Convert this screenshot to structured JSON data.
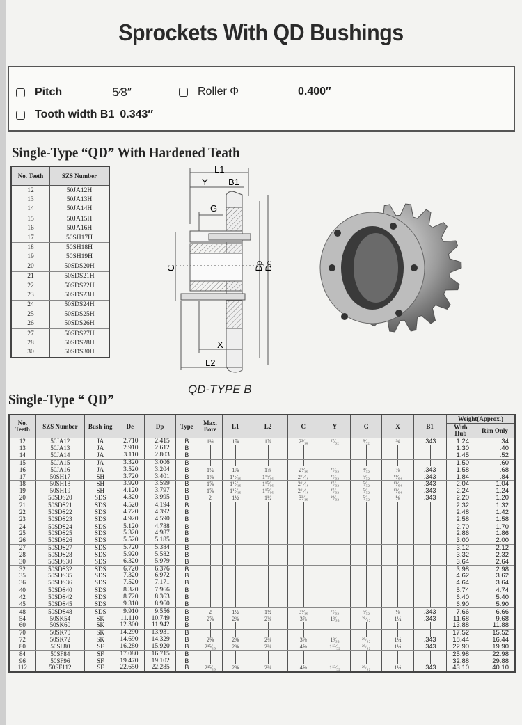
{
  "title": "Sprockets With QD Bushings",
  "specs": {
    "pitch_label": "Pitch",
    "pitch_value": "5⁄8″",
    "roller_label": "Roller Φ",
    "roller_value": "0.400″",
    "tooth_label": "Tooth width B1",
    "tooth_value": "0.343″"
  },
  "hardened": {
    "heading": "Single-Type “QD” With Hardened Teath",
    "headers": [
      "No. Teeth",
      "SZS Number"
    ],
    "rows": [
      [
        "12",
        "50JA12H"
      ],
      [
        "13",
        "50JA13H"
      ],
      [
        "14",
        "50JA14H"
      ],
      [
        "15",
        "50JA15H"
      ],
      [
        "16",
        "50JA16H"
      ],
      [
        "17",
        "50SH17H"
      ],
      [
        "18",
        "50SH18H"
      ],
      [
        "19",
        "50SH19H"
      ],
      [
        "20",
        "50SDS20H"
      ],
      [
        "21",
        "50SDS21H"
      ],
      [
        "22",
        "50SDS22H"
      ],
      [
        "23",
        "50SDS23H"
      ],
      [
        "24",
        "50SDS24H"
      ],
      [
        "25",
        "50SDS25H"
      ],
      [
        "26",
        "50SDS26H"
      ],
      [
        "27",
        "50SDS27H"
      ],
      [
        "28",
        "50SDS28H"
      ],
      [
        "30",
        "50SDS30H"
      ]
    ]
  },
  "diagram": {
    "labels": {
      "L1": "L1",
      "Y": "Y",
      "B1": "B1",
      "G": "G",
      "C": "C",
      "Dp": "Dp",
      "De": "De",
      "X": "X",
      "L2": "L2"
    },
    "caption": "QD-TYPE B"
  },
  "main": {
    "heading": "Single-Type “ QD”",
    "headers": [
      "No. Teeth",
      "SZS Number",
      "Bush-ing",
      "De",
      "Dp",
      "Type",
      "Max. Bore",
      "L1",
      "L2",
      "C",
      "Y",
      "G",
      "X",
      "B1"
    ],
    "weight_header": "Weight(Approx.)",
    "weight_sub": [
      "With Hub",
      "Rim Only"
    ],
    "rows": [
      [
        "12",
        "50JA12",
        "JA",
        "2.710",
        "2.415",
        "B",
        "1¼",
        "1⅞",
        "1⅞",
        "2³⁄₁₆",
        "²⁷⁄₃₂",
        "⁹⁄₃₂",
        "⅜",
        ".343",
        "1.24",
        ".34"
      ],
      [
        "13",
        "50JA13",
        "JA",
        "2.910",
        "2.612",
        "B",
        "",
        "",
        "",
        "",
        "",
        "",
        "",
        "",
        "1.30",
        ".40"
      ],
      [
        "14",
        "50JA14",
        "JA",
        "3.110",
        "2.803",
        "B",
        "",
        "",
        "",
        "",
        "",
        "",
        "",
        "",
        "1.45",
        ".52"
      ],
      [
        "15",
        "50JA15",
        "JA",
        "3.320",
        "3.006",
        "B",
        "",
        "",
        "",
        "",
        "",
        "",
        "",
        "",
        "1.50",
        ".60"
      ],
      [
        "16",
        "50JA16",
        "JA",
        "3.520",
        "3.204",
        "B",
        "1¼",
        "1⅞",
        "1⅞",
        "2³⁄₁₆",
        "²⁷⁄₃₂",
        "⁹⁄₃₂",
        "⅜",
        ".343",
        "1.58",
        ".68"
      ],
      [
        "17",
        "50SH17",
        "SH",
        "3.720",
        "3.401",
        "B",
        "1⅜",
        "1¹⁵⁄₁₆",
        "1¹⁵⁄₁₆",
        "2¹¹⁄₁₆",
        "²⁷⁄₃₂",
        "⁵⁄₃₂",
        "¹³⁄₆₄",
        ".343",
        "1.84",
        ".84"
      ],
      [
        "18",
        "50SH18",
        "SH",
        "3.920",
        "3.599",
        "B",
        "1⅝",
        "1¹⁵⁄₁₆",
        "1¹⁵⁄₁₆",
        "2¹¹⁄₁₆",
        "²⁷⁄₃₂",
        "⁵⁄₃₂",
        "¹³⁄₆₄",
        ".343",
        "2.04",
        "1.04"
      ],
      [
        "19",
        "50SH19",
        "SH",
        "4.120",
        "3.797",
        "B",
        "1⅝",
        "1¹⁵⁄₁₆",
        "1¹⁵⁄₁₆",
        "2¹¹⁄₁₆",
        "²⁷⁄₃₂",
        "⁵⁄₃₂",
        "¹³⁄₆₄",
        ".343",
        "2.24",
        "1.24"
      ],
      [
        "20",
        "50SDS20",
        "SDS",
        "4.320",
        "3.995",
        "B",
        "2",
        "1½",
        "1½",
        "3³⁄₁₆",
        "¹⁹⁄₃₂",
        "⁵⁄₃₂",
        "⅛",
        ".343",
        "2.20",
        "1.20"
      ],
      [
        "21",
        "50SDS21",
        "SDS",
        "4.520",
        "4.194",
        "B",
        "",
        "",
        "",
        "",
        "",
        "",
        "",
        "",
        "2.32",
        "1.32"
      ],
      [
        "22",
        "50SDS22",
        "SDS",
        "4.720",
        "4.392",
        "B",
        "",
        "",
        "",
        "",
        "",
        "",
        "",
        "",
        "2.48",
        "1.42"
      ],
      [
        "23",
        "50SDS23",
        "SDS",
        "4.920",
        "4.590",
        "B",
        "",
        "",
        "",
        "",
        "",
        "",
        "",
        "",
        "2.58",
        "1.58"
      ],
      [
        "24",
        "50SDS24",
        "SDS",
        "5.120",
        "4.788",
        "B",
        "",
        "",
        "",
        "",
        "",
        "",
        "",
        "",
        "2.70",
        "1.70"
      ],
      [
        "25",
        "50SDS25",
        "SDS",
        "5.320",
        "4.987",
        "B",
        "",
        "",
        "",
        "",
        "",
        "",
        "",
        "",
        "2.86",
        "1.86"
      ],
      [
        "26",
        "50SDS26",
        "SDS",
        "5.520",
        "5.185",
        "B",
        "",
        "",
        "",
        "",
        "",
        "",
        "",
        "",
        "3.00",
        "2.00"
      ],
      [
        "27",
        "50SDS27",
        "SDS",
        "5.720",
        "5.384",
        "B",
        "",
        "",
        "",
        "",
        "",
        "",
        "",
        "",
        "3.12",
        "2.12"
      ],
      [
        "28",
        "50SDS28",
        "SDS",
        "5.920",
        "5.582",
        "B",
        "",
        "",
        "",
        "",
        "",
        "",
        "",
        "",
        "3.32",
        "2.32"
      ],
      [
        "30",
        "50SDS30",
        "SDS",
        "6.320",
        "5.979",
        "B",
        "",
        "",
        "",
        "",
        "",
        "",
        "",
        "",
        "3.64",
        "2.64"
      ],
      [
        "32",
        "50SDS32",
        "SDS",
        "6.720",
        "6.376",
        "B",
        "",
        "",
        "",
        "",
        "",
        "",
        "",
        "",
        "3.98",
        "2.98"
      ],
      [
        "35",
        "50SDS35",
        "SDS",
        "7.320",
        "6.972",
        "B",
        "",
        "",
        "",
        "",
        "",
        "",
        "",
        "",
        "4.62",
        "3.62"
      ],
      [
        "36",
        "50SDS36",
        "SDS",
        "7.520",
        "7.171",
        "B",
        "",
        "",
        "",
        "",
        "",
        "",
        "",
        "",
        "4.64",
        "3.64"
      ],
      [
        "40",
        "50SDS40",
        "SDS",
        "8.320",
        "7.966",
        "B",
        "",
        "",
        "",
        "",
        "",
        "",
        "",
        "",
        "5.74",
        "4.74"
      ],
      [
        "42",
        "50SDS42",
        "SDS",
        "8.720",
        "8.363",
        "B",
        "",
        "",
        "",
        "",
        "",
        "",
        "",
        "",
        "6.40",
        "5.40"
      ],
      [
        "45",
        "50SDS45",
        "SDS",
        "9.310",
        "8.960",
        "B",
        "",
        "",
        "",
        "",
        "",
        "",
        "",
        "",
        "6.90",
        "5.90"
      ],
      [
        "48",
        "50SDS48",
        "SDS",
        "9.910",
        "9.556",
        "B",
        "2",
        "1½",
        "1½",
        "3³⁄₁₆",
        "¹⁷⁄₃₂",
        "⁵⁄₃₂",
        "⅛",
        ".343",
        "7.66",
        "6.66"
      ],
      [
        "54",
        "50SK54",
        "SK",
        "11.110",
        "10.749",
        "B",
        "2⅝",
        "2⅜",
        "2⅜",
        "3⅞",
        "1³⁄₃₂",
        "²⁹⁄₃₂",
        "1¼",
        ".343",
        "11.68",
        "9.68"
      ],
      [
        "60",
        "50SK60",
        "SK",
        "12.300",
        "11.942",
        "B",
        "",
        "",
        "",
        "",
        "",
        "",
        "",
        "",
        "13.88",
        "11.88"
      ],
      [
        "70",
        "50SK70",
        "SK",
        "14.290",
        "13.931",
        "B",
        "",
        "",
        "",
        "",
        "",
        "",
        "",
        "",
        "17.52",
        "15.52"
      ],
      [
        "72",
        "50SK72",
        "SK",
        "14.690",
        "14.329",
        "B",
        "2⅝",
        "2⅜",
        "2⅜",
        "3⅞",
        "1³⁄₃₂",
        "²⁹⁄₃₂",
        "1¼",
        ".343",
        "18.44",
        "16.44"
      ],
      [
        "80",
        "50SF80",
        "SF",
        "16.280",
        "15.920",
        "B",
        "2¹⁵⁄₁₆",
        "2⅜",
        "2⅜",
        "4⅝",
        "1¹³⁄₃₂",
        "²⁹⁄₃₂",
        "1¼",
        ".343",
        "22.90",
        "19.90"
      ],
      [
        "84",
        "50SF84",
        "SF",
        "17.080",
        "16.715",
        "B",
        "",
        "",
        "",
        "",
        "",
        "",
        "",
        "",
        "25.98",
        "22.98"
      ],
      [
        "96",
        "50SF96",
        "SF",
        "19.470",
        "19.102",
        "B",
        "",
        "",
        "",
        "",
        "",
        "",
        "",
        "",
        "32.88",
        "29.88"
      ],
      [
        "112",
        "50SF112",
        "SF",
        "22.650",
        "22.285",
        "B",
        "2¹⁵⁄₁₆",
        "2⅜",
        "2⅜",
        "4⅝",
        "1¹³⁄₃₂",
        "²⁹⁄₃₂",
        "1¼",
        ".343",
        "43.10",
        "40.10"
      ]
    ]
  }
}
